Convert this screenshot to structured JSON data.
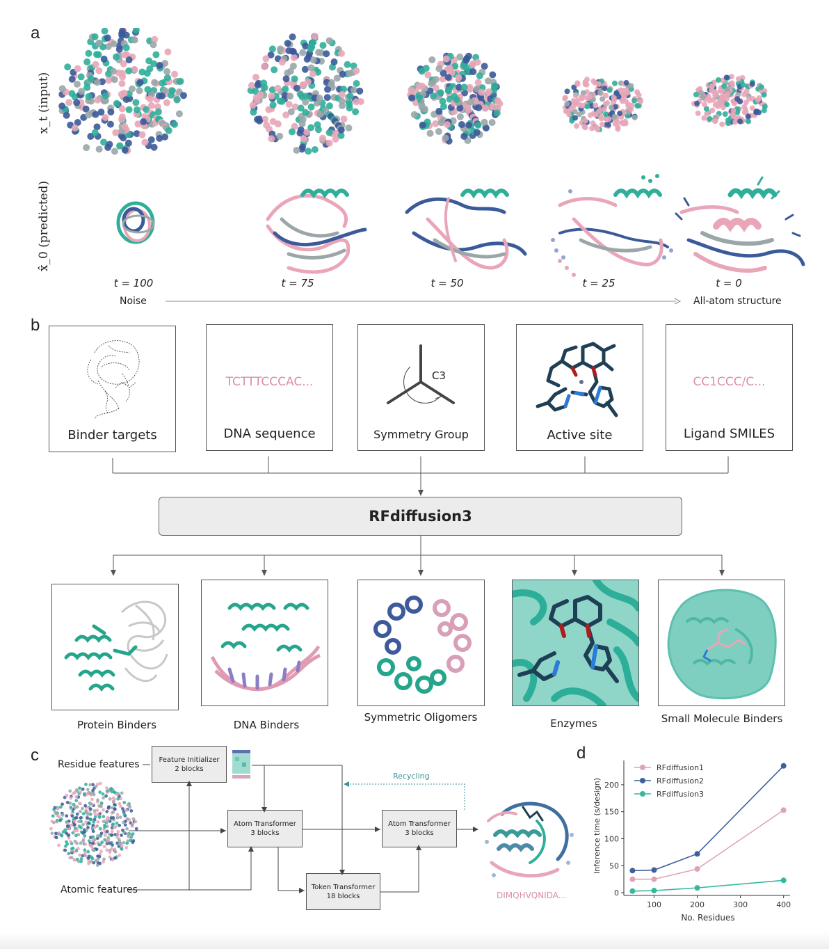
{
  "panel_a": {
    "letter": "a",
    "row_labels": [
      "x_t (input)",
      "x̂_0 (predicted)"
    ],
    "timesteps": [
      "t = 100",
      "t = 75",
      "t = 50",
      "t = 25",
      "t = 0"
    ],
    "start_label": "Noise",
    "end_label": "All-atom structure"
  },
  "panel_b": {
    "letter": "b",
    "inputs": [
      {
        "label": "Binder targets",
        "content": ""
      },
      {
        "label": "DNA sequence",
        "content": "TCTTTCCCAC..."
      },
      {
        "label": "Symmetry Group",
        "content": "C3"
      },
      {
        "label": "Active site",
        "content": ""
      },
      {
        "label": "Ligand SMILES",
        "content": "CC1CCC/C..."
      }
    ],
    "model_name": "RFdiffusion3",
    "outputs": [
      {
        "label": "Protein Binders"
      },
      {
        "label": "DNA Binders"
      },
      {
        "label": "Symmetric Oligomers"
      },
      {
        "label": "Enzymes"
      },
      {
        "label": "Small Molecule Binders"
      }
    ]
  },
  "panel_c": {
    "letter": "c",
    "residue_features": "Residue features",
    "atomic_features": "Atomic features",
    "feature_initializer": {
      "title": "Feature Initializer",
      "blocks": "2 blocks"
    },
    "atom_transformer_1": {
      "title": "Atom Transformer",
      "blocks": "3 blocks"
    },
    "token_transformer": {
      "title": "Token Transformer",
      "blocks": "18 blocks"
    },
    "atom_transformer_2": {
      "title": "Atom Transformer",
      "blocks": "3 blocks"
    },
    "recycling": "Recycling",
    "output_sequence": "DIMQHVQNIDA..."
  },
  "panel_d": {
    "letter": "d"
  },
  "chart_data": {
    "type": "line",
    "title": "",
    "xlabel": "No. Residues",
    "ylabel": "Inference time (s/design)",
    "x": [
      50,
      100,
      200,
      400
    ],
    "xlim": [
      30,
      415
    ],
    "ylim": [
      -5,
      245
    ],
    "xticks": [
      100,
      200,
      300,
      400
    ],
    "yticks": [
      0,
      50,
      100,
      150,
      200
    ],
    "legend_position": "top-left",
    "series": [
      {
        "name": "RFdiffusion1",
        "color": "#e0a3b6",
        "values": [
          25,
          25,
          44,
          153
        ]
      },
      {
        "name": "RFdiffusion2",
        "color": "#3f5f9e",
        "values": [
          41,
          42,
          72,
          235
        ]
      },
      {
        "name": "RFdiffusion3",
        "color": "#35b89e",
        "values": [
          3,
          4,
          9,
          23
        ]
      }
    ]
  },
  "colors": {
    "teal": "#2fae9a",
    "pink": "#e8a6b8",
    "navy": "#3b5a99",
    "grey": "#9aa6a8"
  }
}
